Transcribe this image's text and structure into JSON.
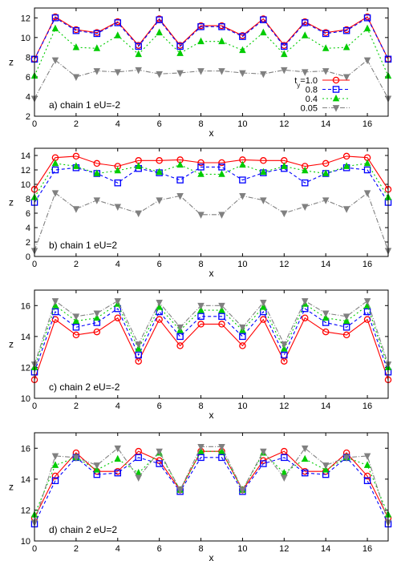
{
  "series_styles": [
    {
      "color": "#ff0000",
      "marker": "circle",
      "dash": ""
    },
    {
      "color": "#0000ff",
      "marker": "square",
      "dash": "4,3"
    },
    {
      "color": "#00cc00",
      "marker": "triangle-up",
      "dash": "2,3"
    },
    {
      "color": "#808080",
      "marker": "triangle-down",
      "dash": "6,2,1,2"
    }
  ],
  "chart_data": [
    {
      "type": "line",
      "annotation": "a)   chain 1   eU=-2",
      "xlabel": "x",
      "ylabel": "z",
      "xlim": [
        0,
        17
      ],
      "ylim": [
        2,
        13
      ],
      "xticks": [
        0,
        2,
        4,
        6,
        8,
        10,
        12,
        14,
        16
      ],
      "yticks": [
        2,
        4,
        6,
        8,
        10,
        12
      ],
      "x": [
        0,
        1,
        2,
        3,
        4,
        5,
        6,
        7,
        8,
        9,
        10,
        11,
        12,
        13,
        14,
        15,
        16,
        17
      ],
      "legend": {
        "position": "bottom-right",
        "labels": [
          "t_y=1.0",
          "0.8",
          "0.4",
          "0.05"
        ]
      },
      "series": [
        {
          "name": "t_y=1.0",
          "values": [
            7.8,
            12.1,
            10.8,
            10.5,
            11.6,
            9.2,
            11.9,
            9.2,
            11.2,
            11.2,
            10.2,
            11.9,
            9.2,
            11.6,
            10.5,
            10.8,
            12.1,
            7.8
          ]
        },
        {
          "name": "0.8",
          "values": [
            7.8,
            12.0,
            10.7,
            10.4,
            11.5,
            9.1,
            11.8,
            9.1,
            11.1,
            11.1,
            10.1,
            11.8,
            9.1,
            11.5,
            10.4,
            10.7,
            12.0,
            7.8
          ]
        },
        {
          "name": "0.4",
          "values": [
            6.1,
            10.9,
            9.0,
            8.9,
            10.2,
            8.3,
            10.5,
            8.4,
            9.6,
            9.6,
            8.7,
            10.5,
            8.3,
            10.2,
            8.9,
            9.0,
            10.9,
            6.1
          ]
        },
        {
          "name": "0.05",
          "values": [
            3.8,
            7.7,
            6.0,
            6.6,
            6.5,
            6.7,
            6.3,
            6.4,
            6.6,
            6.6,
            6.4,
            6.3,
            6.7,
            6.5,
            6.6,
            6.0,
            7.7,
            3.8
          ]
        }
      ]
    },
    {
      "type": "line",
      "annotation": "b)   chain 1   eU=2",
      "xlabel": "x",
      "ylabel": "z",
      "xlim": [
        0,
        17
      ],
      "ylim": [
        0,
        15
      ],
      "xticks": [
        0,
        2,
        4,
        6,
        8,
        10,
        12,
        14,
        16
      ],
      "yticks": [
        0,
        2,
        4,
        6,
        8,
        10,
        12,
        14
      ],
      "x": [
        0,
        1,
        2,
        3,
        4,
        5,
        6,
        7,
        8,
        9,
        10,
        11,
        12,
        13,
        14,
        15,
        16,
        17
      ],
      "series": [
        {
          "name": "t_y=1.0",
          "values": [
            9.3,
            13.7,
            13.9,
            12.9,
            12.5,
            13.3,
            13.3,
            13.4,
            13.0,
            13.0,
            13.4,
            13.3,
            13.3,
            12.5,
            12.9,
            13.9,
            13.7,
            9.3
          ]
        },
        {
          "name": "0.8",
          "values": [
            7.5,
            12.0,
            12.3,
            11.5,
            10.2,
            12.2,
            11.6,
            10.6,
            12.4,
            12.4,
            10.6,
            11.6,
            12.2,
            10.2,
            11.5,
            12.3,
            12.0,
            7.5
          ]
        },
        {
          "name": "0.4",
          "values": [
            8.2,
            12.9,
            12.5,
            11.5,
            11.9,
            12.5,
            11.7,
            12.7,
            11.4,
            11.4,
            12.7,
            11.7,
            12.5,
            11.9,
            11.5,
            12.5,
            12.9,
            8.2
          ]
        },
        {
          "name": "0.05",
          "values": [
            0.8,
            8.8,
            6.6,
            7.8,
            6.9,
            6.0,
            7.8,
            8.4,
            5.8,
            5.8,
            8.4,
            7.8,
            6.0,
            6.9,
            7.8,
            6.6,
            8.8,
            0.8
          ]
        }
      ]
    },
    {
      "type": "line",
      "annotation": "c)   chain 2   eU=-2",
      "xlabel": "x",
      "ylabel": "z",
      "xlim": [
        0,
        17
      ],
      "ylim": [
        10,
        17
      ],
      "xticks": [
        0,
        2,
        4,
        6,
        8,
        10,
        12,
        14,
        16
      ],
      "yticks": [
        10,
        12,
        14,
        16
      ],
      "x": [
        0,
        1,
        2,
        3,
        4,
        5,
        6,
        7,
        8,
        9,
        10,
        11,
        12,
        13,
        14,
        15,
        16,
        17
      ],
      "series": [
        {
          "name": "t_y=1.0",
          "values": [
            11.2,
            15.1,
            14.1,
            14.3,
            15.2,
            12.4,
            15.1,
            13.4,
            14.8,
            14.8,
            13.4,
            15.1,
            12.4,
            15.2,
            14.3,
            14.1,
            15.1,
            11.2
          ]
        },
        {
          "name": "0.8",
          "values": [
            11.7,
            15.6,
            14.6,
            14.9,
            15.8,
            12.8,
            15.6,
            14.0,
            15.3,
            15.3,
            14.0,
            15.6,
            12.8,
            15.8,
            14.9,
            14.6,
            15.6,
            11.7
          ]
        },
        {
          "name": "0.4",
          "values": [
            12.0,
            16.0,
            15.0,
            15.2,
            16.1,
            13.2,
            15.9,
            14.4,
            15.7,
            15.7,
            14.4,
            15.9,
            13.2,
            16.1,
            15.2,
            15.0,
            16.0,
            12.0
          ]
        },
        {
          "name": "0.05",
          "values": [
            12.2,
            16.3,
            15.3,
            15.5,
            16.3,
            13.5,
            16.2,
            14.6,
            16.0,
            16.0,
            14.6,
            16.2,
            13.5,
            16.3,
            15.5,
            15.3,
            16.3,
            12.2
          ]
        }
      ]
    },
    {
      "type": "line",
      "annotation": "d)   chain 2   eU=2",
      "xlabel": "x",
      "ylabel": "z",
      "xlim": [
        0,
        17
      ],
      "ylim": [
        10,
        17
      ],
      "xticks": [
        0,
        2,
        4,
        6,
        8,
        10,
        12,
        14,
        16
      ],
      "yticks": [
        10,
        12,
        14,
        16
      ],
      "x": [
        0,
        1,
        2,
        3,
        4,
        5,
        6,
        7,
        8,
        9,
        10,
        11,
        12,
        13,
        14,
        15,
        16,
        17
      ],
      "series": [
        {
          "name": "t_y=1.0",
          "values": [
            11.5,
            14.2,
            15.7,
            14.5,
            14.5,
            15.8,
            15.2,
            13.3,
            15.8,
            15.8,
            13.3,
            15.2,
            15.8,
            14.5,
            14.5,
            15.7,
            14.2,
            11.5
          ]
        },
        {
          "name": "0.8",
          "values": [
            11.1,
            13.9,
            15.4,
            14.3,
            14.4,
            15.4,
            15.0,
            13.2,
            15.4,
            15.4,
            13.2,
            15.0,
            15.4,
            14.4,
            14.3,
            15.4,
            13.9,
            11.1
          ]
        },
        {
          "name": "0.4",
          "values": [
            11.7,
            14.9,
            15.4,
            14.6,
            15.3,
            14.4,
            15.7,
            13.3,
            15.8,
            15.8,
            13.3,
            15.7,
            14.4,
            15.3,
            14.6,
            15.4,
            14.9,
            11.7
          ]
        },
        {
          "name": "0.05",
          "values": [
            11.2,
            15.5,
            15.4,
            14.9,
            16.0,
            14.1,
            15.8,
            13.3,
            16.1,
            16.1,
            13.3,
            15.8,
            14.1,
            16.0,
            14.9,
            15.4,
            15.5,
            11.2
          ]
        }
      ]
    }
  ]
}
